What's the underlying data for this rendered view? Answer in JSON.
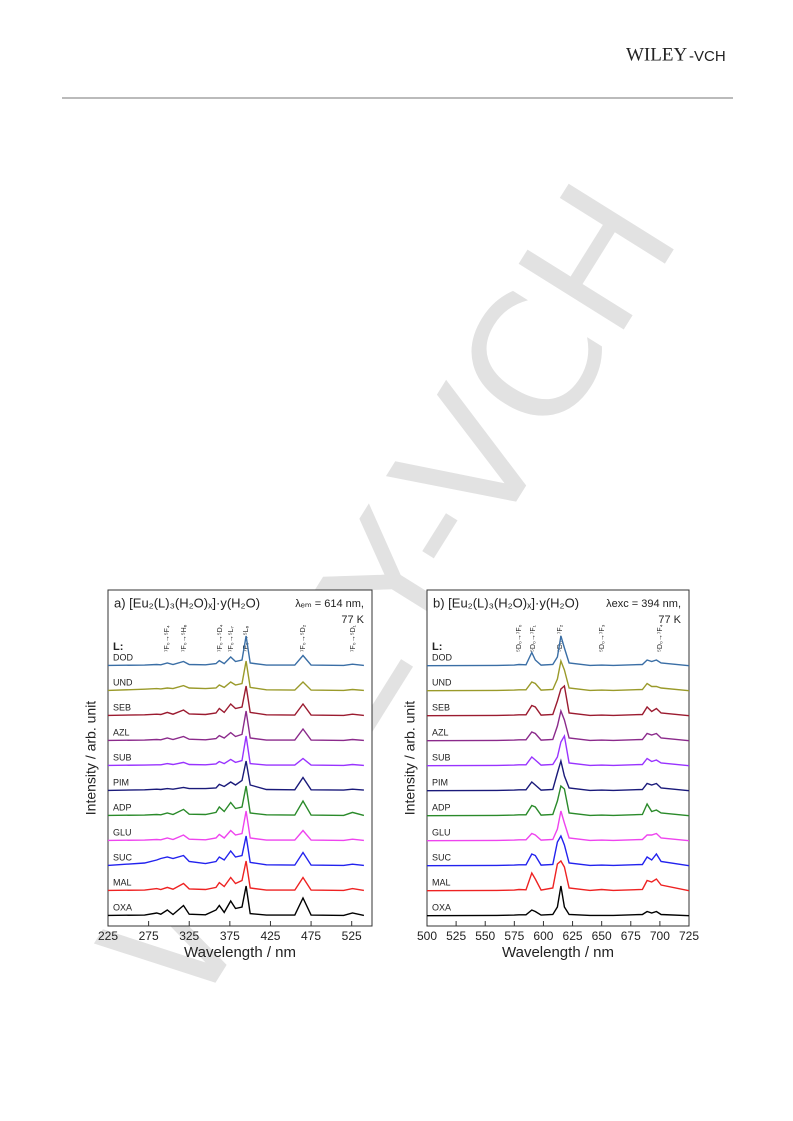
{
  "header": {
    "logo_main": "WILEY",
    "logo_sub": "-VCH"
  },
  "watermark": "WILEY-VCH",
  "chart_data": [
    {
      "type": "line",
      "title": "a) [Eu₂(L)₃(H₂O)ₓ]·y(H₂O)",
      "annotations": [
        "λₑₘ = 614 nm,",
        "77 K"
      ],
      "legend_header": "L:",
      "transitions": [
        "⁷F₀→⁵F₄",
        "⁷F₀→⁵H₆",
        "⁷F₀→⁵D₄",
        "⁷F₀→⁵L₇",
        "⁷F₀→⁵L₆",
        "⁷F₀→⁵D₂",
        "⁷F₀→⁵D₁"
      ],
      "xlabel": "Wavelength / nm",
      "ylabel": "Intensity / arb. unit",
      "xlim": [
        225,
        550
      ],
      "xticks": [
        225,
        275,
        325,
        375,
        425,
        475,
        525
      ],
      "x": [
        225,
        270,
        285,
        290,
        298,
        305,
        318,
        325,
        345,
        358,
        362,
        368,
        376,
        382,
        390,
        395,
        400,
        420,
        455,
        465,
        475,
        515,
        526,
        540
      ],
      "series": [
        {
          "name": "DOD",
          "color": "#3a6ea5",
          "values": [
            0.02,
            0.03,
            0.05,
            0.04,
            0.1,
            0.05,
            0.15,
            0.05,
            0.04,
            0.08,
            0.18,
            0.08,
            0.3,
            0.15,
            0.2,
            1,
            0.1,
            0.03,
            0.03,
            0.35,
            0.03,
            0.02,
            0.06,
            0.02
          ]
        },
        {
          "name": "UND",
          "color": "#9a9a2a",
          "values": [
            0.02,
            0.06,
            0.08,
            0.07,
            0.1,
            0.08,
            0.18,
            0.1,
            0.08,
            0.1,
            0.2,
            0.12,
            0.3,
            0.2,
            0.25,
            1,
            0.12,
            0.04,
            0.03,
            0.3,
            0.03,
            0.02,
            0.05,
            0.02
          ]
        },
        {
          "name": "SEB",
          "color": "#9b1b30",
          "values": [
            0.02,
            0.04,
            0.06,
            0.05,
            0.12,
            0.06,
            0.2,
            0.07,
            0.05,
            0.1,
            0.25,
            0.12,
            0.4,
            0.25,
            0.3,
            1,
            0.12,
            0.04,
            0.03,
            0.4,
            0.03,
            0.02,
            0.06,
            0.02
          ]
        },
        {
          "name": "AZL",
          "color": "#8b2a8b",
          "values": [
            0.02,
            0.03,
            0.05,
            0.04,
            0.1,
            0.05,
            0.15,
            0.06,
            0.04,
            0.08,
            0.18,
            0.1,
            0.28,
            0.15,
            0.22,
            1,
            0.1,
            0.03,
            0.03,
            0.4,
            0.03,
            0.02,
            0.05,
            0.02
          ]
        },
        {
          "name": "SUB",
          "color": "#9933ff",
          "values": [
            0.02,
            0.03,
            0.04,
            0.04,
            0.08,
            0.05,
            0.12,
            0.05,
            0.04,
            0.07,
            0.15,
            0.08,
            0.22,
            0.12,
            0.18,
            1,
            0.08,
            0.03,
            0.03,
            0.25,
            0.03,
            0.02,
            0.05,
            0.02
          ]
        },
        {
          "name": "PIM",
          "color": "#1a1a7a",
          "values": [
            0.02,
            0.04,
            0.06,
            0.05,
            0.08,
            0.06,
            0.12,
            0.08,
            0.08,
            0.1,
            0.22,
            0.15,
            0.3,
            0.2,
            0.35,
            1,
            0.2,
            0.05,
            0.04,
            0.45,
            0.04,
            0.03,
            0.06,
            0.03
          ]
        },
        {
          "name": "ADP",
          "color": "#2a8a2a",
          "values": [
            0.02,
            0.03,
            0.05,
            0.04,
            0.1,
            0.05,
            0.22,
            0.06,
            0.05,
            0.12,
            0.3,
            0.15,
            0.45,
            0.25,
            0.3,
            1,
            0.1,
            0.04,
            0.03,
            0.5,
            0.03,
            0.02,
            0.12,
            0.02
          ]
        },
        {
          "name": "GLU",
          "color": "#ee44ee",
          "values": [
            0.02,
            0.03,
            0.05,
            0.04,
            0.1,
            0.05,
            0.2,
            0.06,
            0.04,
            0.1,
            0.22,
            0.1,
            0.35,
            0.2,
            0.25,
            1,
            0.1,
            0.03,
            0.03,
            0.35,
            0.03,
            0.02,
            0.06,
            0.02
          ]
        },
        {
          "name": "SUC",
          "color": "#2222ee",
          "values": [
            0.02,
            0.1,
            0.2,
            0.25,
            0.3,
            0.25,
            0.35,
            0.15,
            0.08,
            0.15,
            0.3,
            0.2,
            0.5,
            0.3,
            0.35,
            1,
            0.12,
            0.04,
            0.03,
            0.45,
            0.03,
            0.02,
            0.06,
            0.02
          ]
        },
        {
          "name": "MAL",
          "color": "#ee2222",
          "values": [
            0.02,
            0.03,
            0.08,
            0.05,
            0.12,
            0.06,
            0.25,
            0.07,
            0.05,
            0.12,
            0.28,
            0.15,
            0.45,
            0.25,
            0.35,
            1,
            0.1,
            0.03,
            0.03,
            0.45,
            0.03,
            0.02,
            0.08,
            0.02
          ]
        },
        {
          "name": "OXA",
          "color": "#000000",
          "values": [
            0.02,
            0.03,
            0.1,
            0.06,
            0.2,
            0.05,
            0.35,
            0.06,
            0.04,
            0.2,
            0.35,
            0.12,
            0.5,
            0.25,
            0.3,
            1,
            0.08,
            0.03,
            0.03,
            0.6,
            0.03,
            0.02,
            0.1,
            0.02
          ]
        }
      ]
    },
    {
      "type": "line",
      "title": "b) [Eu₂(L)₃(H₂O)ₓ]·y(H₂O)",
      "annotations": [
        "λexc = 394 nm,",
        "77 K"
      ],
      "legend_header": "L:",
      "transitions": [
        "⁵D₀→⁷F₀",
        "⁵D₀→⁷F₁",
        "⁵D₀→⁷F₂",
        "⁵D₀→⁷F₃",
        "⁵D₀→⁷F₄"
      ],
      "xlabel": "Wavelength / nm",
      "ylabel": "Intensity / arb. unit",
      "xlim": [
        500,
        725
      ],
      "xticks": [
        500,
        525,
        550,
        575,
        600,
        625,
        650,
        675,
        700,
        725
      ],
      "x": [
        500,
        560,
        575,
        579,
        585,
        590,
        593,
        598,
        608,
        612,
        615,
        618,
        622,
        640,
        650,
        660,
        685,
        689,
        693,
        697,
        701,
        725
      ],
      "series": [
        {
          "name": "DOD",
          "color": "#3a6ea5",
          "values": [
            0.01,
            0.02,
            0.03,
            0.05,
            0.04,
            0.45,
            0.2,
            0.03,
            0.05,
            0.3,
            1,
            0.6,
            0.1,
            0.02,
            0.03,
            0.02,
            0.05,
            0.2,
            0.15,
            0.2,
            0.1,
            0.01
          ]
        },
        {
          "name": "UND",
          "color": "#9a9a2a",
          "values": [
            0.01,
            0.02,
            0.03,
            0.04,
            0.04,
            0.3,
            0.25,
            0.03,
            0.05,
            0.4,
            1,
            0.7,
            0.1,
            0.02,
            0.03,
            0.02,
            0.05,
            0.25,
            0.15,
            0.15,
            0.1,
            0.01
          ]
        },
        {
          "name": "SEB",
          "color": "#9b1b30",
          "values": [
            0.01,
            0.02,
            0.03,
            0.04,
            0.04,
            0.35,
            0.3,
            0.03,
            0.05,
            0.5,
            0.9,
            1,
            0.1,
            0.02,
            0.03,
            0.02,
            0.05,
            0.3,
            0.15,
            0.25,
            0.1,
            0.01
          ]
        },
        {
          "name": "AZL",
          "color": "#8b2a8b",
          "values": [
            0.01,
            0.02,
            0.03,
            0.04,
            0.04,
            0.3,
            0.25,
            0.03,
            0.05,
            0.5,
            1,
            0.7,
            0.1,
            0.02,
            0.03,
            0.02,
            0.05,
            0.25,
            0.2,
            0.25,
            0.1,
            0.01
          ]
        },
        {
          "name": "SUB",
          "color": "#9933ff",
          "values": [
            0.01,
            0.02,
            0.03,
            0.04,
            0.04,
            0.3,
            0.2,
            0.03,
            0.05,
            0.3,
            0.8,
            1,
            0.1,
            0.02,
            0.03,
            0.02,
            0.05,
            0.25,
            0.15,
            0.2,
            0.1,
            0.01
          ]
        },
        {
          "name": "PIM",
          "color": "#1a1a7a",
          "values": [
            0.01,
            0.02,
            0.03,
            0.04,
            0.04,
            0.3,
            0.2,
            0.03,
            0.05,
            0.6,
            1,
            0.5,
            0.1,
            0.02,
            0.03,
            0.02,
            0.05,
            0.25,
            0.2,
            0.25,
            0.1,
            0.01
          ]
        },
        {
          "name": "ADP",
          "color": "#2a8a2a",
          "values": [
            0.01,
            0.02,
            0.03,
            0.04,
            0.04,
            0.35,
            0.3,
            0.03,
            0.05,
            0.5,
            1,
            0.9,
            0.1,
            0.02,
            0.03,
            0.02,
            0.05,
            0.4,
            0.15,
            0.2,
            0.1,
            0.01
          ]
        },
        {
          "name": "GLU",
          "color": "#ee44ee",
          "values": [
            0.01,
            0.02,
            0.03,
            0.04,
            0.04,
            0.25,
            0.2,
            0.03,
            0.05,
            0.4,
            1,
            0.6,
            0.1,
            0.02,
            0.03,
            0.02,
            0.05,
            0.2,
            0.2,
            0.25,
            0.1,
            0.01
          ]
        },
        {
          "name": "SUC",
          "color": "#2222ee",
          "values": [
            0.01,
            0.02,
            0.03,
            0.04,
            0.04,
            0.4,
            0.35,
            0.03,
            0.05,
            0.8,
            1,
            0.7,
            0.1,
            0.02,
            0.03,
            0.02,
            0.05,
            0.3,
            0.2,
            0.4,
            0.15,
            0.01
          ]
        },
        {
          "name": "MAL",
          "color": "#ee2222",
          "values": [
            0.01,
            0.02,
            0.03,
            0.05,
            0.04,
            0.6,
            0.4,
            0.03,
            0.1,
            0.9,
            1,
            0.8,
            0.1,
            0.02,
            0.05,
            0.02,
            0.05,
            0.35,
            0.3,
            0.4,
            0.2,
            0.01
          ]
        },
        {
          "name": "OXA",
          "color": "#000000",
          "values": [
            0.01,
            0.02,
            0.03,
            0.04,
            0.04,
            0.2,
            0.15,
            0.03,
            0.05,
            0.3,
            1,
            0.3,
            0.05,
            0.02,
            0.02,
            0.02,
            0.05,
            0.15,
            0.1,
            0.15,
            0.05,
            0.01
          ]
        }
      ]
    }
  ]
}
